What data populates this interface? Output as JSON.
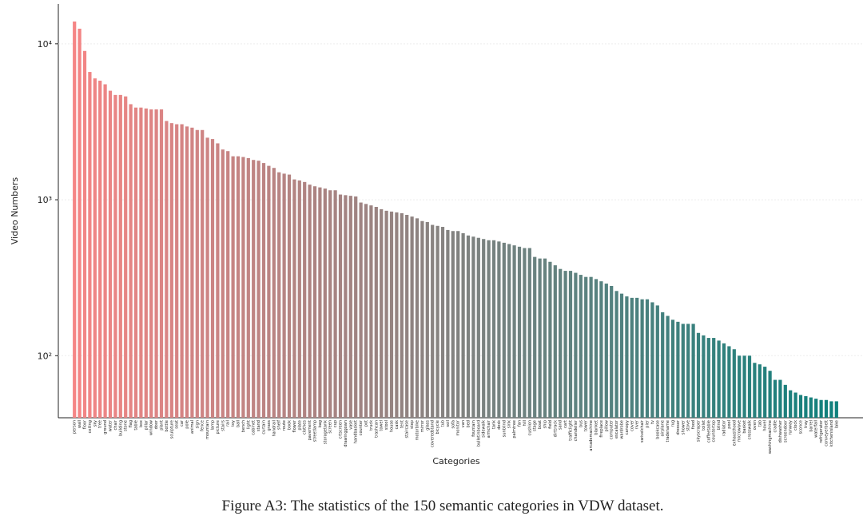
{
  "chart_data": {
    "type": "bar",
    "log_scale": true,
    "grid": true,
    "ylabel": "Video Numbers",
    "xlabel": "Categories",
    "caption": "Figure A3: The statistics of the 150 semantic categories in VDW dataset.",
    "colors": [
      "#f58585",
      "#0f807c"
    ],
    "ylim": [
      40,
      18000
    ],
    "yticks": [
      {
        "value": 100,
        "label": "10²"
      },
      {
        "value": 1000,
        "label": "10³"
      },
      {
        "value": 10000,
        "label": "10⁴"
      }
    ],
    "categories": [
      "person",
      "wall",
      "floor",
      "ceiling",
      "sky",
      "tree",
      "ground",
      "water",
      "chair",
      "building",
      "stone",
      "flag",
      "table",
      "box",
      "pillar",
      "window",
      "door",
      "plant",
      "bottle",
      "sculpture",
      "seat",
      "car",
      "pole",
      "animal",
      "sign",
      "fence",
      "mountain",
      "lamp",
      "picture",
      "stairs",
      "rail",
      "toy",
      "ball",
      "bench",
      "light",
      "cabinet",
      "stand",
      "curtain",
      "grass",
      "handrail",
      "shelf",
      "route",
      "book",
      "flower",
      "plate",
      "clothes",
      "pavement",
      "streetlamp",
      "bag",
      "storagetank",
      "screen",
      "cup",
      "crtscreen",
      "drawinggown",
      "vase",
      "handbasket",
      "counter",
      "pot",
      "truck",
      "trashcan",
      "towel",
      "stool",
      "house",
      "cask",
      "tent",
      "staircase",
      "step",
      "motorbike",
      "mirror",
      "glass",
      "coveredstand",
      "bicycle",
      "tub",
      "soil",
      "sofa",
      "monitor",
      "van",
      "bed",
      "fountain",
      "bulletinboard",
      "sidewalk",
      "armchair",
      "tank",
      "desk",
      "sunblind",
      "sink",
      "palmtree",
      "fan",
      "hill",
      "cushion",
      "stage",
      "boat",
      "ship",
      "field",
      "dirttrack",
      "sand",
      "cart",
      "trafficlight",
      "chandelier",
      "bus",
      "tower",
      "arcademachine",
      "blanket",
      "fireplace",
      "pillow",
      "computer",
      "escalator",
      "wardrobe",
      "canopy",
      "cover",
      "river",
      "swivelchair",
      "pier",
      "tv",
      "bookcase",
      "airplane",
      "tradename",
      "rug",
      "dresser",
      "shower",
      "stove",
      "food",
      "skyscraper",
      "toilet",
      "coffeetable",
      "countertop",
      "blind",
      "radiator",
      "pool",
      "exhausthood",
      "microwave",
      "basket",
      "crosswalk",
      "oven",
      "tab",
      "hovel",
      "washingmachine",
      "cradle",
      "dishwasher",
      "screendoor",
      "runway",
      "clock",
      "sconce",
      "tray",
      "barrel",
      "waterfall",
      "refrigerator",
      "conveyerbelt",
      "kitchenisland",
      "lake"
    ],
    "values": [
      13900,
      12500,
      9000,
      6600,
      6000,
      5800,
      5500,
      5000,
      4700,
      4700,
      4600,
      4100,
      3900,
      3900,
      3850,
      3800,
      3800,
      3800,
      3200,
      3100,
      3050,
      3050,
      2950,
      2900,
      2800,
      2800,
      2500,
      2450,
      2300,
      2100,
      2050,
      1900,
      1900,
      1880,
      1850,
      1800,
      1780,
      1720,
      1650,
      1600,
      1500,
      1470,
      1450,
      1350,
      1330,
      1300,
      1250,
      1220,
      1200,
      1180,
      1150,
      1150,
      1080,
      1070,
      1060,
      1050,
      960,
      940,
      920,
      900,
      870,
      850,
      840,
      830,
      820,
      800,
      780,
      760,
      730,
      720,
      690,
      680,
      670,
      640,
      630,
      630,
      610,
      590,
      580,
      570,
      560,
      550,
      550,
      540,
      530,
      520,
      510,
      500,
      490,
      490,
      430,
      420,
      420,
      400,
      380,
      360,
      350,
      350,
      340,
      330,
      320,
      320,
      310,
      300,
      290,
      280,
      260,
      250,
      240,
      235,
      235,
      230,
      230,
      220,
      210,
      190,
      180,
      170,
      165,
      160,
      160,
      160,
      140,
      135,
      130,
      130,
      125,
      120,
      115,
      110,
      100,
      100,
      100,
      90,
      88,
      85,
      80,
      70,
      70,
      65,
      60,
      58,
      56,
      55,
      54,
      53,
      52,
      52,
      51,
      51
    ]
  }
}
